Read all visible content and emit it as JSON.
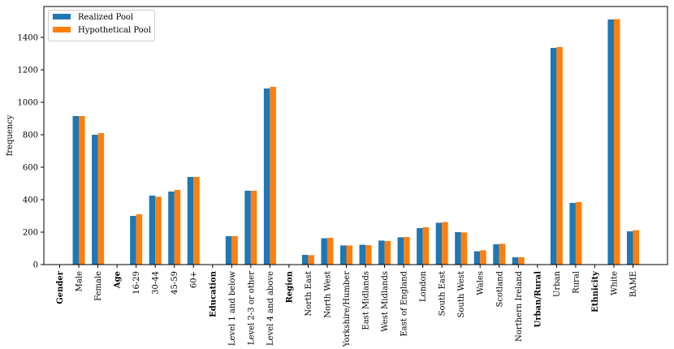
{
  "chart_data": {
    "type": "bar",
    "ylabel": "frequency",
    "xlabel": "",
    "ylim": [
      0,
      1590
    ],
    "yticks": [
      0,
      200,
      400,
      600,
      800,
      1000,
      1200,
      1400
    ],
    "grid": false,
    "legend": "top-left",
    "categories": [
      {
        "label": "Gender",
        "group_header": true
      },
      {
        "label": "Male"
      },
      {
        "label": "Female"
      },
      {
        "label": "Age",
        "group_header": true
      },
      {
        "label": "16-29"
      },
      {
        "label": "30-44"
      },
      {
        "label": "45-59"
      },
      {
        "label": "60+"
      },
      {
        "label": "Education",
        "group_header": true
      },
      {
        "label": "Level 1 and below"
      },
      {
        "label": "Level 2-3 or other"
      },
      {
        "label": "Level 4 and above"
      },
      {
        "label": "Region",
        "group_header": true
      },
      {
        "label": "North East"
      },
      {
        "label": "North West"
      },
      {
        "label": "Yorkshire/Humber"
      },
      {
        "label": "East Midlands"
      },
      {
        "label": "West Midlands"
      },
      {
        "label": "East of England"
      },
      {
        "label": "London"
      },
      {
        "label": "South East"
      },
      {
        "label": "South West"
      },
      {
        "label": "Wales"
      },
      {
        "label": "Scotland"
      },
      {
        "label": "Northern Ireland"
      },
      {
        "label": "Urban/Rural",
        "group_header": true
      },
      {
        "label": "Urban"
      },
      {
        "label": "Rural"
      },
      {
        "label": "Ethnicity",
        "group_header": true
      },
      {
        "label": "White"
      },
      {
        "label": "BAME"
      }
    ],
    "series": [
      {
        "name": "Realized Pool",
        "color": "#1f77b4",
        "values": [
          0,
          915,
          800,
          0,
          300,
          425,
          450,
          540,
          0,
          175,
          455,
          1085,
          0,
          60,
          162,
          118,
          122,
          148,
          168,
          225,
          258,
          200,
          82,
          125,
          45,
          0,
          1335,
          380,
          0,
          1510,
          205
        ]
      },
      {
        "name": "Hypothetical Pool",
        "color": "#ff7f0e",
        "values": [
          0,
          915,
          810,
          0,
          310,
          418,
          460,
          540,
          0,
          175,
          455,
          1095,
          0,
          58,
          165,
          118,
          120,
          145,
          170,
          230,
          262,
          198,
          88,
          128,
          45,
          0,
          1340,
          385,
          0,
          1512,
          212
        ]
      }
    ]
  }
}
